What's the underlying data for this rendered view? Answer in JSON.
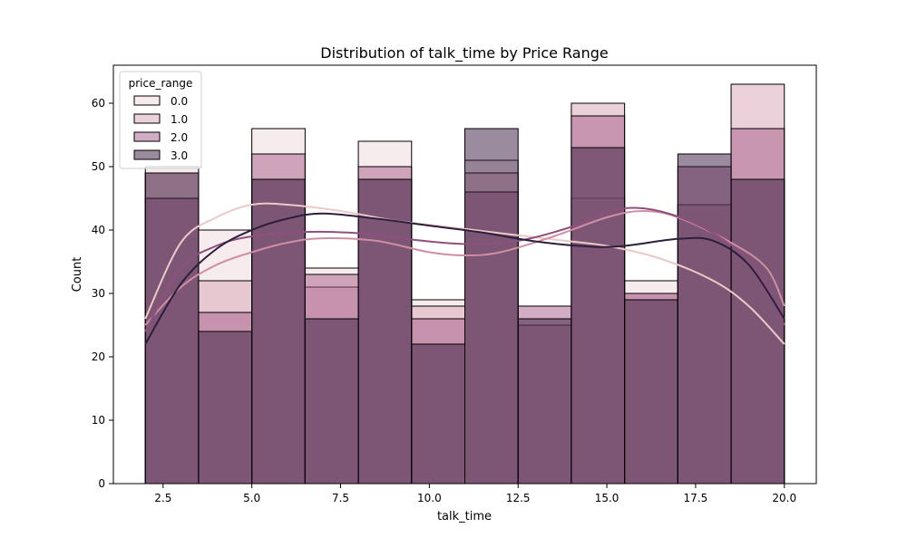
{
  "chart_data": {
    "type": "bar",
    "subtype": "overlaid histogram with kde",
    "title": "Distribution of talk_time by Price Range",
    "xlabel": "talk_time",
    "ylabel": "Count",
    "xlim": [
      1.1,
      20.9
    ],
    "ylim": [
      0,
      66
    ],
    "x_ticks": [
      2.5,
      5.0,
      7.5,
      10.0,
      12.5,
      15.0,
      17.5,
      20.0
    ],
    "x_tick_labels": [
      "2.5",
      "5.0",
      "7.5",
      "10.0",
      "12.5",
      "15.0",
      "17.5",
      "20.0"
    ],
    "y_ticks": [
      0,
      10,
      20,
      30,
      40,
      50,
      60
    ],
    "y_tick_labels": [
      "0",
      "10",
      "20",
      "30",
      "40",
      "50",
      "60"
    ],
    "bin_edges": [
      2.0,
      3.5,
      5.0,
      6.5,
      8.0,
      9.5,
      11.0,
      12.5,
      14.0,
      15.5,
      17.0,
      18.5,
      20.0
    ],
    "legend": {
      "title": "price_range",
      "position": "upper left"
    },
    "series": [
      {
        "name": "0.0",
        "color": "#efd9db",
        "kde_color": "#ecc9c6",
        "values": [
          50,
          40,
          56,
          34,
          54,
          29,
          51,
          25,
          45,
          32,
          44,
          48
        ],
        "kde": [
          [
            2.0,
            26
          ],
          [
            3.0,
            38
          ],
          [
            4.0,
            42
          ],
          [
            5.0,
            44
          ],
          [
            6.0,
            44
          ],
          [
            7.5,
            43
          ],
          [
            9.0,
            41.5
          ],
          [
            10.5,
            40.5
          ],
          [
            12.0,
            39.5
          ],
          [
            13.5,
            38.5
          ],
          [
            15.0,
            37.5
          ],
          [
            16.5,
            35.5
          ],
          [
            18.0,
            32
          ],
          [
            19.0,
            28
          ],
          [
            20.0,
            22
          ]
        ]
      },
      {
        "name": "1.0",
        "color": "#d7a3b5",
        "kde_color": "#cf8ea3",
        "values": [
          49,
          32,
          48,
          31,
          48,
          28,
          49,
          25,
          60,
          30,
          44,
          63
        ],
        "kde": [
          [
            2.0,
            25
          ],
          [
            3.0,
            31
          ],
          [
            4.0,
            34.5
          ],
          [
            5.0,
            36.5
          ],
          [
            6.0,
            38
          ],
          [
            7.0,
            38.7
          ],
          [
            8.5,
            38.3
          ],
          [
            10.0,
            36.5
          ],
          [
            11.0,
            36
          ],
          [
            12.0,
            36.5
          ],
          [
            13.5,
            39
          ],
          [
            15.0,
            42
          ],
          [
            16.0,
            43
          ],
          [
            17.0,
            42
          ],
          [
            18.5,
            38
          ],
          [
            19.5,
            34
          ],
          [
            20.0,
            28
          ]
        ]
      },
      {
        "name": "2.0",
        "color": "#a85c8a",
        "kde_color": "#8e4f7e",
        "values": [
          45,
          27,
          52,
          33,
          50,
          26,
          46,
          28,
          58,
          30,
          50,
          56
        ],
        "kde": [
          [
            2.0,
            24
          ],
          [
            3.0,
            34
          ],
          [
            4.0,
            37.5
          ],
          [
            5.0,
            39
          ],
          [
            6.5,
            39.7
          ],
          [
            8.0,
            39.5
          ],
          [
            9.5,
            38.5
          ],
          [
            11.0,
            37.8
          ],
          [
            12.5,
            38.3
          ],
          [
            14.0,
            40.5
          ],
          [
            15.0,
            42.8
          ],
          [
            15.8,
            43.5
          ],
          [
            16.8,
            42.5
          ],
          [
            18.0,
            39.5
          ],
          [
            19.2,
            34
          ],
          [
            20.0,
            25
          ]
        ]
      },
      {
        "name": "3.0",
        "color": "#35193e",
        "kde_color": "#2d1e3e",
        "values": [
          49,
          24,
          48,
          26,
          48,
          22,
          56,
          26,
          53,
          29,
          52,
          48
        ],
        "kde": [
          [
            2.0,
            22
          ],
          [
            3.0,
            31.5
          ],
          [
            4.0,
            37
          ],
          [
            5.0,
            40
          ],
          [
            6.0,
            41.8
          ],
          [
            7.0,
            42.6
          ],
          [
            8.5,
            41.8
          ],
          [
            10.0,
            40.7
          ],
          [
            11.5,
            39.6
          ],
          [
            13.0,
            38.2
          ],
          [
            14.5,
            37.4
          ],
          [
            15.5,
            37.5
          ],
          [
            17.0,
            38.6
          ],
          [
            18.0,
            38.3
          ],
          [
            19.0,
            34.5
          ],
          [
            20.0,
            26
          ]
        ]
      }
    ]
  }
}
